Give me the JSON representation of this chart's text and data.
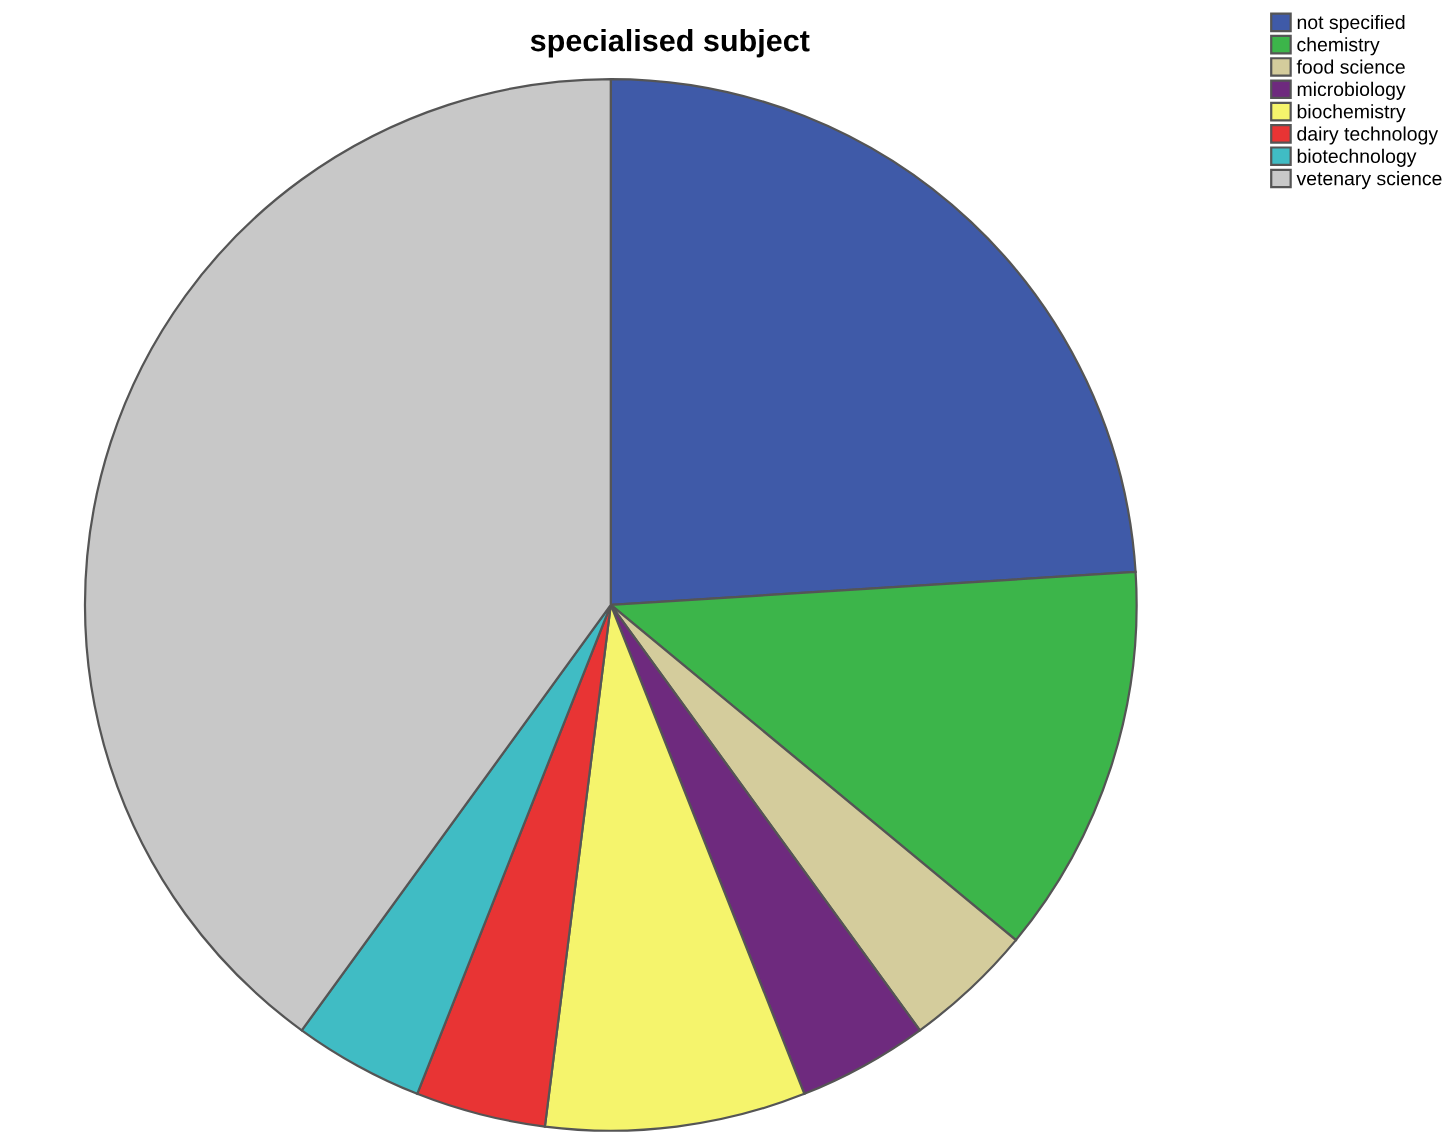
{
  "chart_data": {
    "type": "pie",
    "title": "specialised subject",
    "categories": [
      "not specified",
      "chemistry",
      "food science",
      "microbiology",
      "biochemistry",
      "dairy technology",
      "biotechnology",
      "vetenary science"
    ],
    "values": [
      24,
      12,
      4,
      4,
      8,
      4,
      4,
      40
    ],
    "colors": [
      "#3f5aa8",
      "#3cb54a",
      "#d4cc9c",
      "#6e2a7e",
      "#f5f46c",
      "#e83434",
      "#40bcc4",
      "#c8c8c8"
    ],
    "legend": "top right"
  }
}
